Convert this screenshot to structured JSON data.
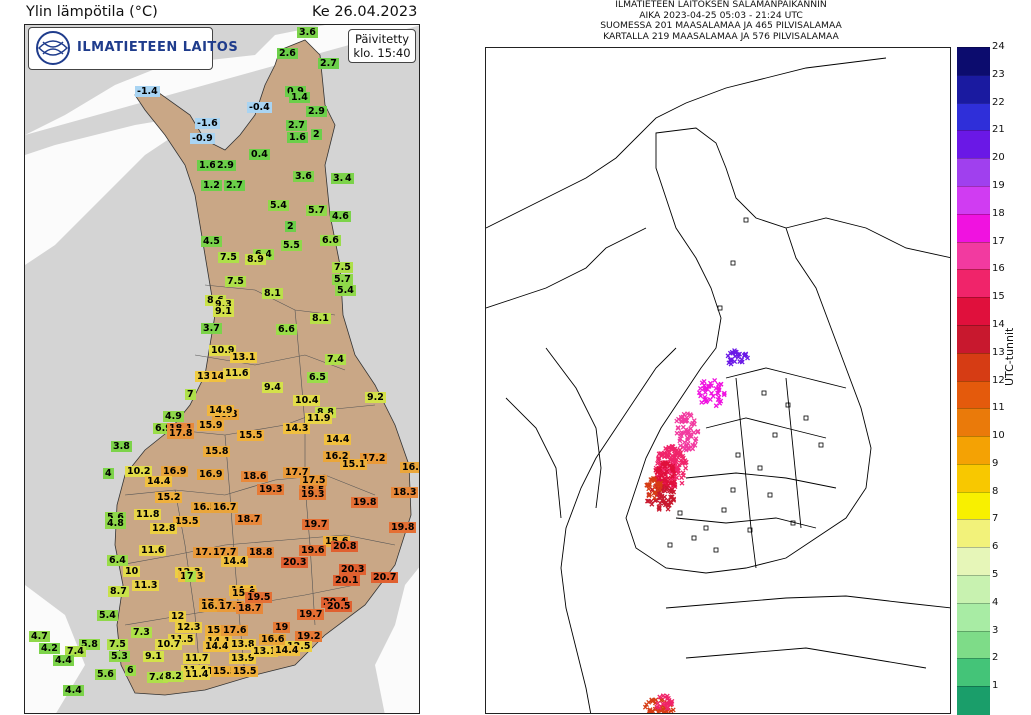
{
  "temperature_panel": {
    "title": "Ylin lämpötila (°C)",
    "date": "Ke 26.04.2023",
    "logo_text": "ILMATIETEEN LAITOS",
    "updated_line1": "Päivitetty",
    "updated_line2": "klo. 15:40",
    "colors": {
      "sea": "#d4d4d4",
      "land": "#c9a786"
    },
    "readings": [
      {
        "v": "3.6",
        "c": "#7cd34a"
      },
      {
        "v": "2.6",
        "c": "#6ccf4a"
      },
      {
        "v": "2.7",
        "c": "#6ccf4a"
      },
      {
        "v": "-1.4",
        "c": "#a9d4f2"
      },
      {
        "v": "0.9",
        "c": "#6ccf4a"
      },
      {
        "v": "1.4",
        "c": "#6ccf4a"
      },
      {
        "v": "-0.4",
        "c": "#a9d4f2"
      },
      {
        "v": "2.9",
        "c": "#6ccf4a"
      },
      {
        "v": "-1.6",
        "c": "#a9d4f2"
      },
      {
        "v": "2.7",
        "c": "#6ccf4a"
      },
      {
        "v": "-0.9",
        "c": "#a9d4f2"
      },
      {
        "v": "1.6",
        "c": "#6ccf4a"
      },
      {
        "v": "2",
        "c": "#6ccf4a"
      },
      {
        "v": "1.6",
        "c": "#6ccf4a"
      },
      {
        "v": "2.9",
        "c": "#6ccf4a"
      },
      {
        "v": "0.4",
        "c": "#6ccf4a"
      },
      {
        "v": "1.2",
        "c": "#6ccf4a"
      },
      {
        "v": "3.6",
        "c": "#7cd34a"
      },
      {
        "v": "3.8",
        "c": "#7cd34a"
      },
      {
        "v": "4",
        "c": "#7cd34a"
      },
      {
        "v": "2.7",
        "c": "#6ccf4a"
      },
      {
        "v": "5.4",
        "c": "#8fd84a"
      },
      {
        "v": "5.7",
        "c": "#8fd84a"
      },
      {
        "v": "4.6",
        "c": "#7cd34a"
      },
      {
        "v": "2",
        "c": "#6ccf4a"
      },
      {
        "v": "4.5",
        "c": "#7cd34a"
      },
      {
        "v": "5.5",
        "c": "#8fd84a"
      },
      {
        "v": "6.6",
        "c": "#9add4a"
      },
      {
        "v": "7.5",
        "c": "#aee04a"
      },
      {
        "v": "6.4",
        "c": "#9add4a"
      },
      {
        "v": "8.9",
        "c": "#c9e24a"
      },
      {
        "v": "7.5",
        "c": "#aee04a"
      },
      {
        "v": "5.7",
        "c": "#8fd84a"
      },
      {
        "v": "7.5",
        "c": "#aee04a"
      },
      {
        "v": "5.4",
        "c": "#8fd84a"
      },
      {
        "v": "8.1",
        "c": "#b9e04a"
      },
      {
        "v": "8.6",
        "c": "#c9e24a"
      },
      {
        "v": "9.3",
        "c": "#d4e24a"
      },
      {
        "v": "9.1",
        "c": "#d4e24a"
      },
      {
        "v": "8.1",
        "c": "#b9e04a"
      },
      {
        "v": "3.7",
        "c": "#7cd34a"
      },
      {
        "v": "6.6",
        "c": "#9add4a"
      },
      {
        "v": "10.9",
        "c": "#e2dc4a"
      },
      {
        "v": "13.1",
        "c": "#efcc42"
      },
      {
        "v": "7.4",
        "c": "#aee04a"
      },
      {
        "v": "13",
        "c": "#efcc42"
      },
      {
        "v": "14",
        "c": "#f0c040"
      },
      {
        "v": "11.6",
        "c": "#e8d44a"
      },
      {
        "v": "6.5",
        "c": "#9add4a"
      },
      {
        "v": "9.4",
        "c": "#d4e24a"
      },
      {
        "v": "7",
        "c": "#aee04a"
      },
      {
        "v": "10.4",
        "c": "#e2dc4a"
      },
      {
        "v": "9.2",
        "c": "#d4e24a"
      },
      {
        "v": "8.8",
        "c": "#c9e24a"
      },
      {
        "v": "11.9",
        "c": "#e8d44a"
      },
      {
        "v": "4.9",
        "c": "#8fd84a"
      },
      {
        "v": "16.8",
        "c": "#e9a43a"
      },
      {
        "v": "14.9",
        "c": "#f0b63e"
      },
      {
        "v": "6.9",
        "c": "#9add4a"
      },
      {
        "v": "18.1",
        "c": "#e8883a"
      },
      {
        "v": "17.8",
        "c": "#e8943a"
      },
      {
        "v": "15.9",
        "c": "#edac3c"
      },
      {
        "v": "14.3",
        "c": "#f0c040"
      },
      {
        "v": "14.4",
        "c": "#f0c040"
      },
      {
        "v": "15.5",
        "c": "#efb03c"
      },
      {
        "v": "3.8",
        "c": "#7cd34a"
      },
      {
        "v": "15.8",
        "c": "#edac3c"
      },
      {
        "v": "16.2",
        "c": "#eaa63a"
      },
      {
        "v": "17.2",
        "c": "#e99a3a"
      },
      {
        "v": "15.1",
        "c": "#efb03c"
      },
      {
        "v": "16.1",
        "c": "#eaa63a"
      },
      {
        "v": "4",
        "c": "#7cd34a"
      },
      {
        "v": "10.2",
        "c": "#e2dc4a"
      },
      {
        "v": "16.9",
        "c": "#e9a43a"
      },
      {
        "v": "16.9",
        "c": "#e9a43a"
      },
      {
        "v": "18.6",
        "c": "#e8883a"
      },
      {
        "v": "17.7",
        "c": "#e99a3a"
      },
      {
        "v": "17.5",
        "c": "#e99a3a"
      },
      {
        "v": "14.4",
        "c": "#f0c040"
      },
      {
        "v": "19.3",
        "c": "#e67a36"
      },
      {
        "v": "18.5",
        "c": "#e8883a"
      },
      {
        "v": "19.3",
        "c": "#e67a36"
      },
      {
        "v": "18.3",
        "c": "#e8883a"
      },
      {
        "v": "15.2",
        "c": "#efb03c"
      },
      {
        "v": "16.5",
        "c": "#eaa63a"
      },
      {
        "v": "16.7",
        "c": "#e9a43a"
      },
      {
        "v": "19.8",
        "c": "#e46f34"
      },
      {
        "v": "5.6",
        "c": "#8fd84a"
      },
      {
        "v": "11.8",
        "c": "#e8d44a"
      },
      {
        "v": "15.5",
        "c": "#efb03c"
      },
      {
        "v": "18.7",
        "c": "#e8883a"
      },
      {
        "v": "4.8",
        "c": "#8fd84a"
      },
      {
        "v": "12.8",
        "c": "#eccf44"
      },
      {
        "v": "19.7",
        "c": "#e46f34"
      },
      {
        "v": "19.8",
        "c": "#e46f34"
      },
      {
        "v": "15.6",
        "c": "#efb03c"
      },
      {
        "v": "11.6",
        "c": "#e8d44a"
      },
      {
        "v": "17.7",
        "c": "#e99a3a"
      },
      {
        "v": "17.7",
        "c": "#e99a3a"
      },
      {
        "v": "18.8",
        "c": "#e8883a"
      },
      {
        "v": "19.6",
        "c": "#e46f34"
      },
      {
        "v": "20.8",
        "c": "#e06030"
      },
      {
        "v": "6.4",
        "c": "#9add4a"
      },
      {
        "v": "20.3",
        "c": "#e06030"
      },
      {
        "v": "14.4",
        "c": "#f0c040"
      },
      {
        "v": "20.3",
        "c": "#e06030"
      },
      {
        "v": "10",
        "c": "#e2dc4a"
      },
      {
        "v": "12.3",
        "c": "#eccf44"
      },
      {
        "v": "14.3",
        "c": "#f0c040"
      },
      {
        "v": "20.1",
        "c": "#e06030"
      },
      {
        "v": "20.7",
        "c": "#e06030"
      },
      {
        "v": "11.3",
        "c": "#e8d44a"
      },
      {
        "v": "7",
        "c": "#aee04a"
      },
      {
        "v": "8.7",
        "c": "#c9e24a"
      },
      {
        "v": "14.4",
        "c": "#f0c040"
      },
      {
        "v": "15.6",
        "c": "#efb03c"
      },
      {
        "v": "19.5",
        "c": "#e46f34"
      },
      {
        "v": "17.2",
        "c": "#e99a3a"
      },
      {
        "v": "16.5",
        "c": "#eaa63a"
      },
      {
        "v": "17.5",
        "c": "#e99a3a"
      },
      {
        "v": "18.7",
        "c": "#e8883a"
      },
      {
        "v": "20.4",
        "c": "#e06030"
      },
      {
        "v": "20.5",
        "c": "#e06030"
      },
      {
        "v": "5.4",
        "c": "#8fd84a"
      },
      {
        "v": "12",
        "c": "#eccf44"
      },
      {
        "v": "19.7",
        "c": "#e46f34"
      },
      {
        "v": "12.3",
        "c": "#eccf44"
      },
      {
        "v": "15",
        "c": "#efb03c"
      },
      {
        "v": "17.6",
        "c": "#e99a3a"
      },
      {
        "v": "19",
        "c": "#e67a36"
      },
      {
        "v": "4.7",
        "c": "#8fd84a"
      },
      {
        "v": "7.3",
        "c": "#aee04a"
      },
      {
        "v": "11.5",
        "c": "#e8d44a"
      },
      {
        "v": "14.1",
        "c": "#f0c040"
      },
      {
        "v": "13.8",
        "c": "#efcc42"
      },
      {
        "v": "16.6",
        "c": "#eaa63a"
      },
      {
        "v": "19.2",
        "c": "#e67a36"
      },
      {
        "v": "5.8",
        "c": "#8fd84a"
      },
      {
        "v": "7.5",
        "c": "#aee04a"
      },
      {
        "v": "10.7",
        "c": "#e2dc4a"
      },
      {
        "v": "14.4",
        "c": "#f0c040"
      },
      {
        "v": "12.5",
        "c": "#eccf44"
      },
      {
        "v": "7.4",
        "c": "#aee04a"
      },
      {
        "v": "4.2",
        "c": "#7cd34a"
      },
      {
        "v": "9.1",
        "c": "#d4e24a"
      },
      {
        "v": "11.7",
        "c": "#e8d44a"
      },
      {
        "v": "13.9",
        "c": "#efcc42"
      },
      {
        "v": "13.1",
        "c": "#efcc42"
      },
      {
        "v": "14.4",
        "c": "#f0c040"
      },
      {
        "v": "4.4",
        "c": "#7cd34a"
      },
      {
        "v": "5.3",
        "c": "#8fd84a"
      },
      {
        "v": "11.4",
        "c": "#e8d44a"
      },
      {
        "v": "12.5",
        "c": "#eccf44"
      },
      {
        "v": "5.6",
        "c": "#8fd84a"
      },
      {
        "v": "6",
        "c": "#9add4a"
      },
      {
        "v": "7.4",
        "c": "#aee04a"
      },
      {
        "v": "8.2",
        "c": "#b9e04a"
      },
      {
        "v": "11.4",
        "c": "#e8d44a"
      },
      {
        "v": "15.5",
        "c": "#efb03c"
      },
      {
        "v": "15.5",
        "c": "#efb03c"
      },
      {
        "v": "4.4",
        "c": "#7cd34a"
      }
    ]
  },
  "lightning_panel": {
    "header_lines": [
      "ILMATIETEEN LAITOKSEN SALAMANPAIKANNIN",
      "AIKA 2023-04-25 05:03 - 21:24 UTC",
      "SUOMESSA 201 MAASALAMAA JA 465 PILVISALAMAA",
      "KARTALLA 219 MAASALAMAA JA 576 PILVISALAMAA"
    ],
    "colorbar_label": "UTC-tunnit",
    "colorbar_ticks": [
      "24",
      "23",
      "22",
      "21",
      "20",
      "19",
      "18",
      "17",
      "16",
      "15",
      "14",
      "13",
      "12",
      "11",
      "10",
      "9",
      "8",
      "7",
      "6",
      "5",
      "4",
      "3",
      "2",
      "1"
    ],
    "colorbar_colors": [
      "#0c0c6e",
      "#1a1aa0",
      "#2f2fd9",
      "#6a18e6",
      "#a040ee",
      "#d03cf2",
      "#f012e0",
      "#f23aa0",
      "#f0246a",
      "#e0103c",
      "#c8182e",
      "#d63c14",
      "#e45a0c",
      "#ea7a0a",
      "#f4a204",
      "#f8c800",
      "#f8f000",
      "#f2f27a",
      "#e6f6b8",
      "#c8f2b0",
      "#a8eca4",
      "#7edc88",
      "#44c478",
      "#1a9e6a"
    ]
  }
}
